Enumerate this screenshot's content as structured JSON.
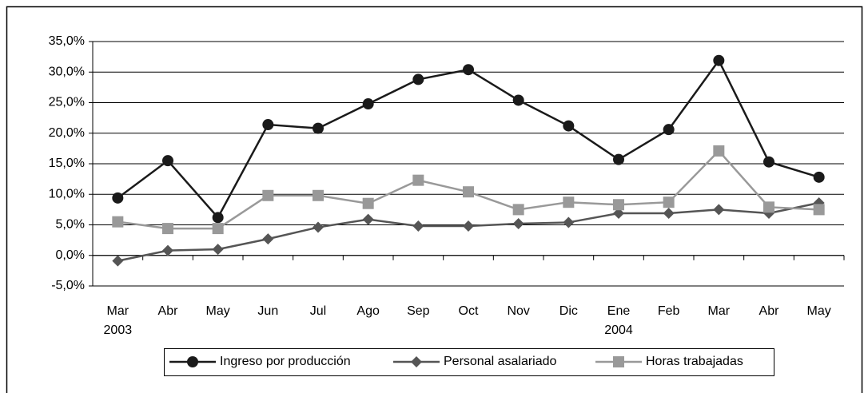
{
  "chart_data": {
    "type": "line",
    "categories": [
      "Mar",
      "Abr",
      "May",
      "Jun",
      "Jul",
      "Ago",
      "Sep",
      "Oct",
      "Nov",
      "Dic",
      "Ene",
      "Feb",
      "Mar",
      "Abr",
      "May"
    ],
    "years": [
      "2003",
      null,
      null,
      null,
      null,
      null,
      null,
      null,
      null,
      null,
      "2004",
      null,
      null,
      null,
      null
    ],
    "series": [
      {
        "name": "Ingreso por producción",
        "color": "#1a1a1a",
        "marker": "circle",
        "values": [
          9.4,
          15.5,
          6.2,
          21.4,
          20.8,
          24.8,
          28.8,
          30.4,
          25.4,
          21.2,
          15.7,
          20.6,
          31.9,
          15.3,
          12.8
        ]
      },
      {
        "name": "Personal asalariado",
        "color": "#555555",
        "marker": "diamond",
        "values": [
          -0.9,
          0.8,
          1.0,
          2.7,
          4.6,
          5.9,
          4.8,
          4.8,
          5.2,
          5.4,
          6.9,
          6.9,
          7.5,
          6.9,
          8.6
        ]
      },
      {
        "name": "Horas trabajadas",
        "color": "#999999",
        "marker": "square",
        "values": [
          5.5,
          4.4,
          4.4,
          9.8,
          9.8,
          8.5,
          12.3,
          10.4,
          7.5,
          8.7,
          8.3,
          8.7,
          17.1,
          7.9,
          7.5
        ]
      }
    ],
    "ylim": [
      -5,
      35
    ],
    "yticks": [
      {
        "value": -5,
        "label": "-5,0%"
      },
      {
        "value": 0,
        "label": "0,0%"
      },
      {
        "value": 5,
        "label": "5,0%"
      },
      {
        "value": 10,
        "label": "10,0%"
      },
      {
        "value": 15,
        "label": "15,0%"
      },
      {
        "value": 20,
        "label": "20,0%"
      },
      {
        "value": 25,
        "label": "25,0%"
      },
      {
        "value": 30,
        "label": "30,0%"
      },
      {
        "value": 35,
        "label": "35,0%"
      }
    ],
    "grid": true
  }
}
